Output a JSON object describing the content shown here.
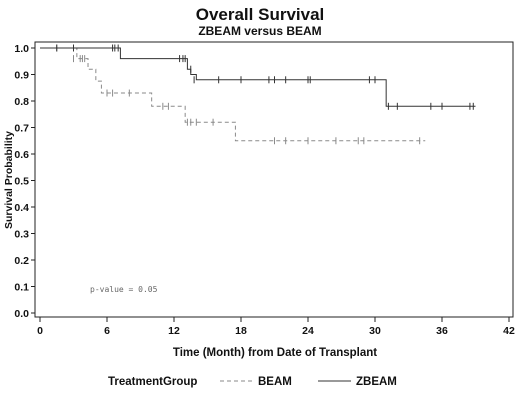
{
  "chart_data": {
    "type": "line",
    "title": "Overall Survival",
    "subtitle": "ZBEAM versus BEAM",
    "xlabel": "Time (Month) from Date of Transplant",
    "ylabel": "Survival Probability",
    "xlim": [
      0,
      42
    ],
    "ylim": [
      0.0,
      1.0
    ],
    "x_ticks": [
      "0",
      "6",
      "12",
      "18",
      "24",
      "30",
      "36",
      "42"
    ],
    "y_ticks": [
      "0.0",
      "0.1",
      "0.2",
      "0.3",
      "0.4",
      "0.5",
      "0.6",
      "0.7",
      "0.8",
      "0.9",
      "1.0"
    ],
    "grid": false,
    "legend_title": "TreatmentGroup",
    "legend_position": "bottom",
    "annotation": "p-value = 0.05",
    "series": [
      {
        "name": "BEAM",
        "style": "dashed",
        "color": "#8a8a8a",
        "x": [
          0,
          3.3,
          4.3,
          5.0,
          5.5,
          10.0,
          13.0,
          17.5,
          34.5
        ],
        "y": [
          1.0,
          0.96,
          0.92,
          0.875,
          0.83,
          0.78,
          0.72,
          0.65,
          0.65
        ],
        "censor_x": [
          1.5,
          3.0,
          3.6,
          3.8,
          4.0,
          6.0,
          6.5,
          8.0,
          11.0,
          11.5,
          13.2,
          13.5,
          14.0,
          15.5,
          21.0,
          22.0,
          24.0,
          26.5,
          28.5,
          29.0,
          34.0
        ],
        "censor_y": [
          1.0,
          0.96,
          0.96,
          0.96,
          0.96,
          0.83,
          0.83,
          0.83,
          0.78,
          0.78,
          0.72,
          0.72,
          0.72,
          0.72,
          0.65,
          0.65,
          0.65,
          0.65,
          0.65,
          0.65,
          0.65
        ]
      },
      {
        "name": "ZBEAM",
        "style": "solid",
        "color": "#333333",
        "x": [
          0,
          7.2,
          13.2,
          13.5,
          14.0,
          31.0,
          39.0
        ],
        "y": [
          1.0,
          0.96,
          0.92,
          0.9,
          0.88,
          0.78,
          0.78
        ],
        "censor_x": [
          1.5,
          3.0,
          6.5,
          6.7,
          7.0,
          12.5,
          12.8,
          13.0,
          13.5,
          13.8,
          16.0,
          18.0,
          20.5,
          21.0,
          22.0,
          24.0,
          24.2,
          29.5,
          30.0,
          31.2,
          32.0,
          35.0,
          36.0,
          38.5,
          38.8
        ],
        "censor_y": [
          1.0,
          1.0,
          1.0,
          1.0,
          1.0,
          0.96,
          0.96,
          0.96,
          0.92,
          0.88,
          0.88,
          0.88,
          0.88,
          0.88,
          0.88,
          0.88,
          0.88,
          0.88,
          0.88,
          0.78,
          0.78,
          0.78,
          0.78,
          0.78,
          0.78
        ]
      }
    ]
  }
}
